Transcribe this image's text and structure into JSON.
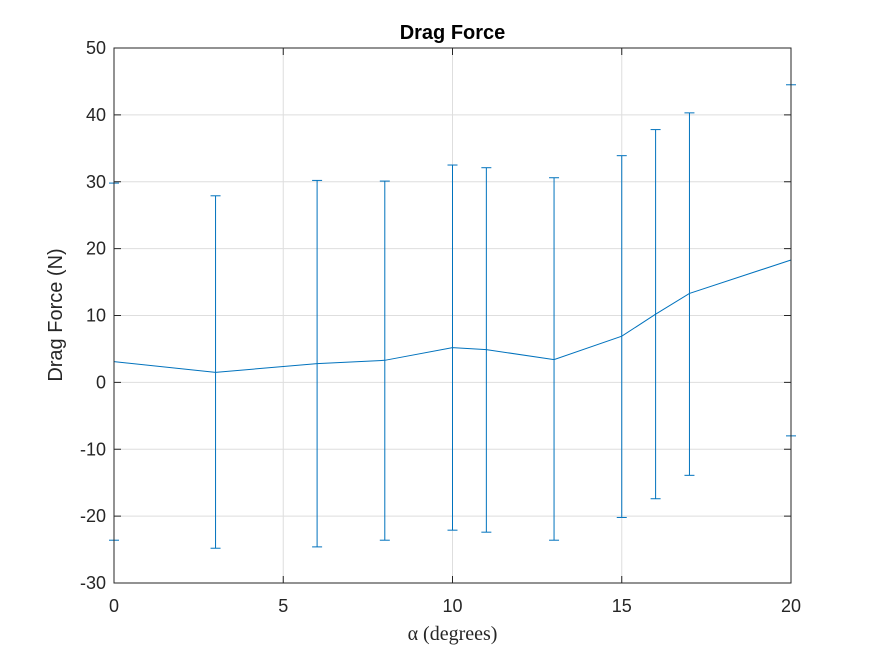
{
  "chart_data": {
    "type": "line",
    "title": "Drag Force",
    "xlabel": "α (degrees)",
    "ylabel": "Drag Force (N)",
    "xlim": [
      0,
      20
    ],
    "ylim": [
      -30,
      50
    ],
    "xticks": [
      0,
      5,
      10,
      15,
      20
    ],
    "yticks": [
      -30,
      -20,
      -10,
      0,
      10,
      20,
      30,
      40,
      50
    ],
    "grid": true,
    "series": [
      {
        "color": "#0072bd",
        "points": [
          {
            "x": 0,
            "y": 3.1,
            "lower": -23.6,
            "upper": 29.8
          },
          {
            "x": 3,
            "y": 1.5,
            "lower": -24.8,
            "upper": 27.9
          },
          {
            "x": 6,
            "y": 2.8,
            "lower": -24.6,
            "upper": 30.2
          },
          {
            "x": 8,
            "y": 3.3,
            "lower": -23.6,
            "upper": 30.1
          },
          {
            "x": 10,
            "y": 5.2,
            "lower": -22.1,
            "upper": 32.5
          },
          {
            "x": 11,
            "y": 4.9,
            "lower": -22.4,
            "upper": 32.1
          },
          {
            "x": 13,
            "y": 3.4,
            "lower": -23.6,
            "upper": 30.6
          },
          {
            "x": 15,
            "y": 6.9,
            "lower": -20.2,
            "upper": 33.9
          },
          {
            "x": 16,
            "y": 10.2,
            "lower": -17.4,
            "upper": 37.8
          },
          {
            "x": 17,
            "y": 13.3,
            "lower": -13.9,
            "upper": 40.3
          },
          {
            "x": 20,
            "y": 18.3,
            "lower": -8.0,
            "upper": 44.5
          }
        ]
      }
    ]
  }
}
